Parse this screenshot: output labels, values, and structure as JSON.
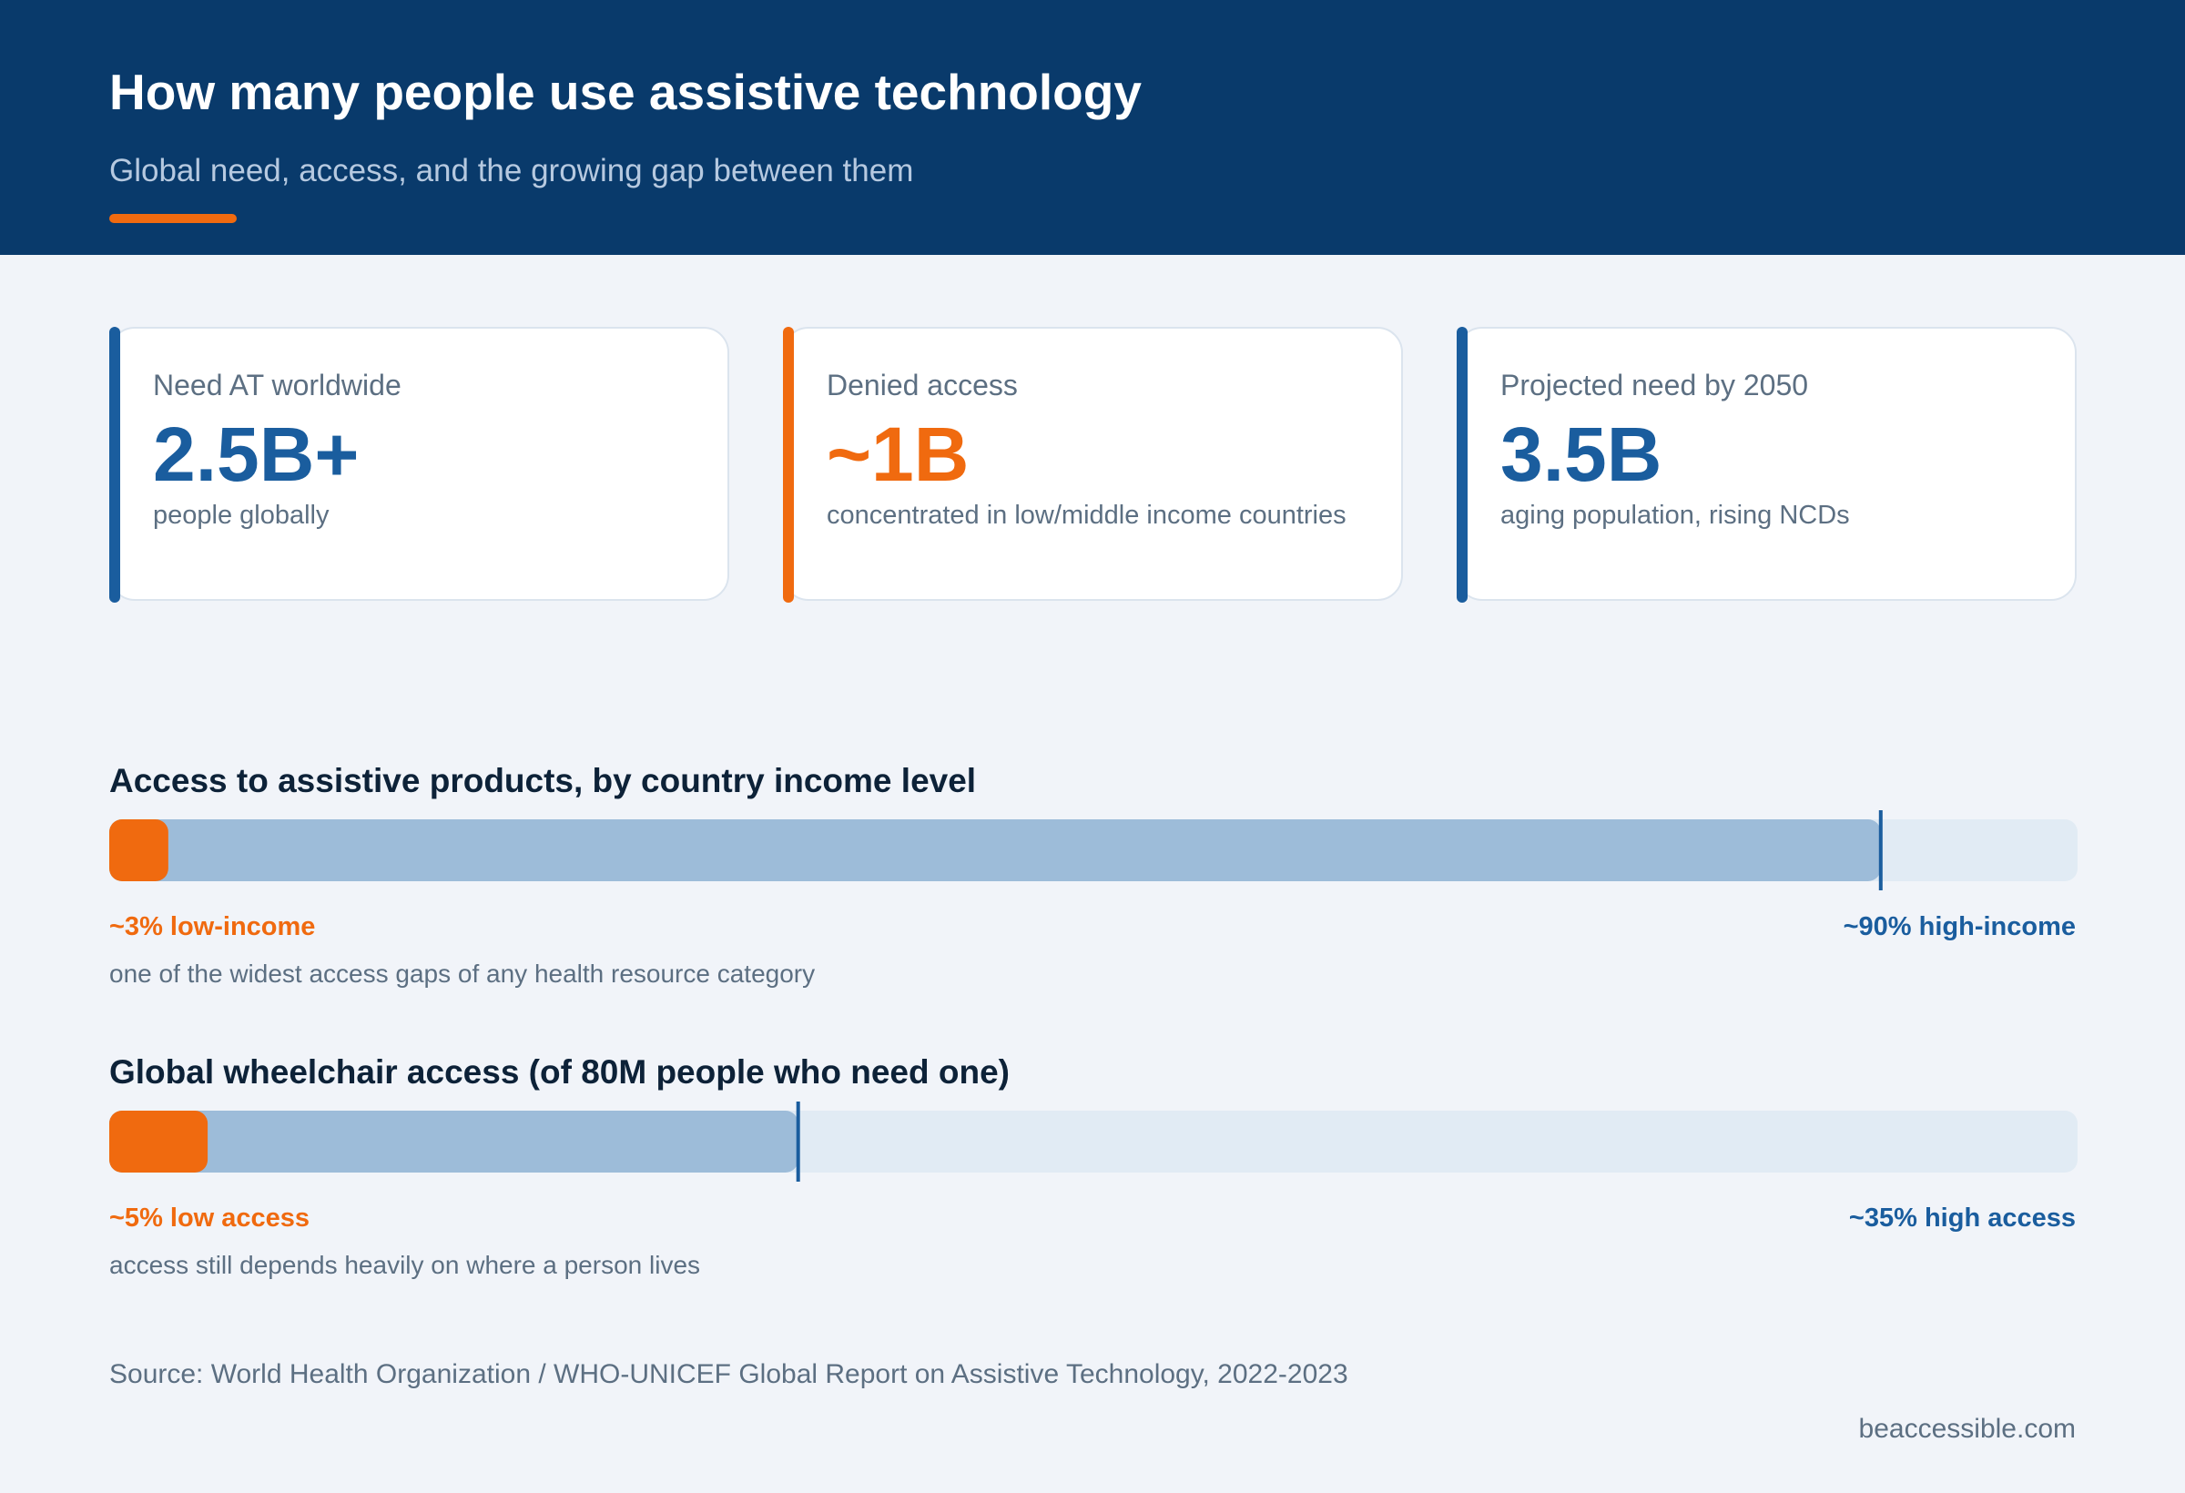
{
  "header": {
    "title": "How many people use assistive technology",
    "subtitle": "Global need, access, and the growing gap between them"
  },
  "colors": {
    "navy": "#093a6b",
    "blue": "#1a5d9e",
    "orange": "#f06a0f",
    "bar_fill": "#9dbcd9",
    "bar_track": "#e1ebf4"
  },
  "stats": [
    {
      "label": "Need AT worldwide",
      "value": "2.5B+",
      "note": "people globally",
      "accent": "#1a5d9e"
    },
    {
      "label": "Denied access",
      "value": "~1B",
      "note": "concentrated in low/middle income countries",
      "accent": "#f06a0f"
    },
    {
      "label": "Projected need by 2050",
      "value": "3.5B",
      "note": "aging population, rising NCDs",
      "accent": "#1a5d9e"
    }
  ],
  "chart_data": [
    {
      "type": "bar",
      "title": "Access to assistive products, by country income level",
      "unit": "%",
      "xlim": [
        0,
        100
      ],
      "series": [
        {
          "name": "low-income",
          "value": 3,
          "label": "~3% low-income",
          "color": "#f06a0f"
        },
        {
          "name": "high-income",
          "value": 90,
          "label": "~90% high-income",
          "color": "#9dbcd9"
        }
      ],
      "note": "one of the widest access gaps of any health resource category"
    },
    {
      "type": "bar",
      "title": "Global wheelchair access (of 80M people who need one)",
      "unit": "%",
      "xlim": [
        0,
        100
      ],
      "series": [
        {
          "name": "low access",
          "value": 5,
          "label": "~5% low access",
          "color": "#f06a0f"
        },
        {
          "name": "high access",
          "value": 35,
          "label": "~35% high access",
          "color": "#9dbcd9"
        }
      ],
      "note": "access still depends heavily on where a person lives"
    }
  ],
  "footer": {
    "source": "Source: World Health Organization / WHO-UNICEF Global Report on Assistive Technology, 2022-2023",
    "brand": "beaccessible.com"
  }
}
